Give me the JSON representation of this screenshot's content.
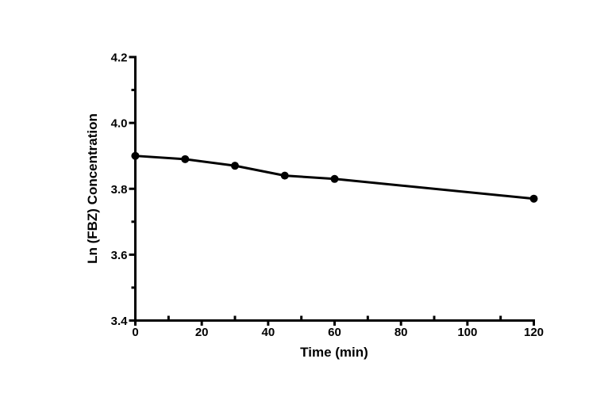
{
  "figure": {
    "background": "#ffffff",
    "ink_color": "#000000"
  },
  "chart_data": {
    "type": "line",
    "title": "",
    "xlabel": "Time (min)",
    "ylabel": "Ln (FBZ) Concentration",
    "x": [
      0,
      15,
      30,
      45,
      60,
      120
    ],
    "series": [
      {
        "name": "Ln (FBZ) Concentration",
        "values": [
          3.9,
          3.89,
          3.87,
          3.84,
          3.83,
          3.77
        ]
      }
    ],
    "xlim": [
      0,
      120
    ],
    "ylim": [
      3.4,
      4.2
    ],
    "x_ticks": {
      "major": [
        0,
        20,
        40,
        60,
        80,
        100,
        120
      ],
      "major_labels": [
        "0",
        "20",
        "40",
        "60",
        "80",
        "100",
        "120"
      ],
      "minor": [
        10,
        30,
        50,
        70,
        90,
        110
      ]
    },
    "y_ticks": {
      "major": [
        3.4,
        3.6,
        3.8,
        4.0,
        4.2
      ],
      "major_labels": [
        "3.4",
        "3.6",
        "3.8",
        "4.0",
        "4.2"
      ],
      "minor": [
        3.5,
        3.7,
        3.9,
        4.1
      ]
    },
    "grid": false,
    "legend": false,
    "marker": "filled-circle",
    "line_color": "#000000",
    "marker_color": "#000000"
  }
}
